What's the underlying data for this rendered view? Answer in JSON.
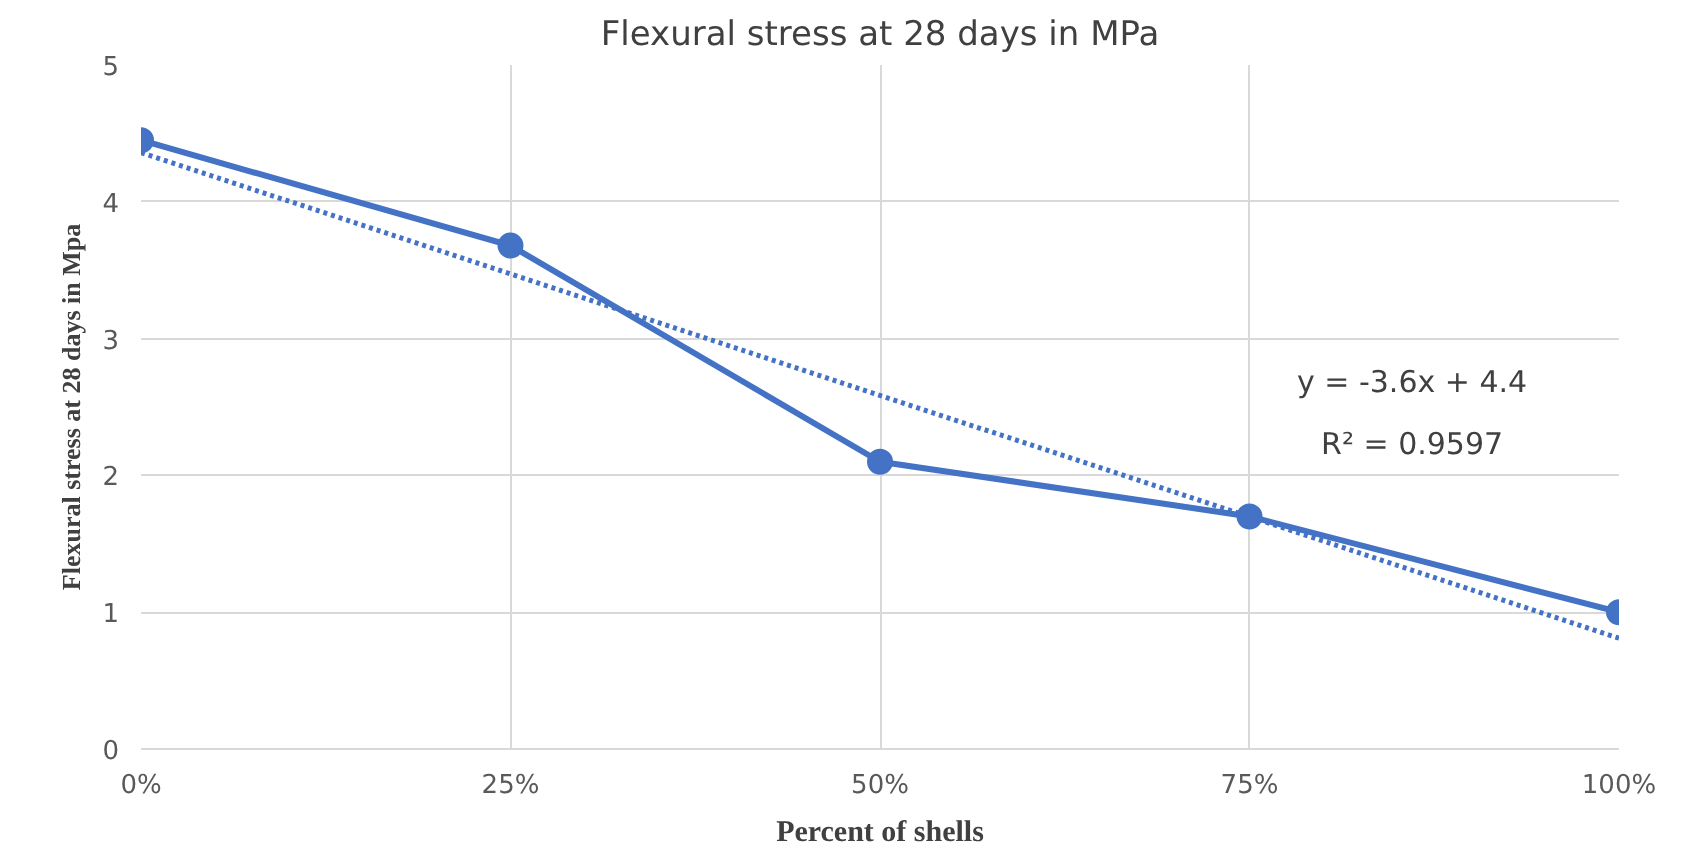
{
  "chart_data": {
    "type": "line",
    "title": "Flexural stress at 28 days in MPa",
    "xlabel": "Percent of shells",
    "ylabel": "Flexural stress at 28 days in Mpa",
    "x": [
      0,
      0.25,
      0.5,
      0.75,
      1
    ],
    "series": [
      {
        "color": "#4472c4",
        "values": [
          4.45,
          3.68,
          2.1,
          1.7,
          1.0
        ],
        "marker": "circle",
        "line_style": "solid"
      },
      {
        "color": "#4472c4",
        "x": [
          0,
          1
        ],
        "values": [
          4.36,
          0.81
        ],
        "marker": "none",
        "line_style": "dotted"
      }
    ],
    "xlim": [
      0,
      1
    ],
    "xticks": [
      {
        "value": 0,
        "label": "0%"
      },
      {
        "value": 0.25,
        "label": "25%"
      },
      {
        "value": 0.5,
        "label": "50%"
      },
      {
        "value": 0.75,
        "label": "75%"
      },
      {
        "value": 1,
        "label": "100%"
      }
    ],
    "ylim": [
      0,
      5
    ],
    "yticks": [
      0,
      1,
      2,
      3,
      4,
      5
    ],
    "grid": true,
    "annotations": [
      "y = -3.6x + 4.4",
      "R² = 0.9597"
    ]
  }
}
